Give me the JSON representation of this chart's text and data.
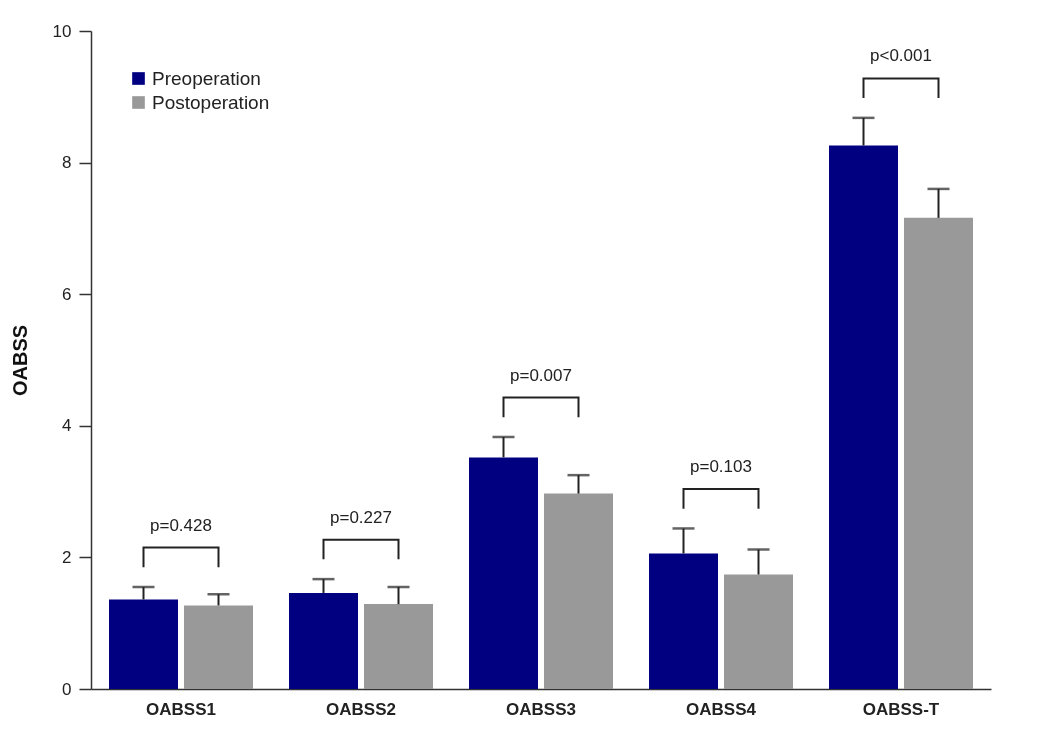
{
  "chart_data": {
    "type": "bar",
    "ylabel": "OABSS",
    "categories": [
      "OABSS1",
      "OABSS2",
      "OABSS3",
      "OABSS4",
      "OABSS-T"
    ],
    "series": [
      {
        "name": "Preoperation",
        "color": "#000080",
        "values": [
          1.36,
          1.46,
          3.52,
          2.06,
          8.26
        ],
        "errors": [
          [
            1.36,
            1.55
          ],
          [
            1.46,
            1.67
          ],
          [
            3.52,
            3.83
          ],
          [
            2.06,
            2.44
          ],
          [
            8.26,
            8.68
          ]
        ]
      },
      {
        "name": "Postoperation",
        "color": "#999999",
        "values": [
          1.27,
          1.29,
          2.97,
          1.74,
          7.16
        ],
        "errors": [
          [
            1.27,
            1.44
          ],
          [
            1.29,
            1.55
          ],
          [
            2.97,
            3.25
          ],
          [
            1.74,
            2.12
          ],
          [
            7.16,
            7.6
          ]
        ]
      }
    ],
    "ylim": [
      0,
      10
    ],
    "yticks": [
      0,
      2,
      4,
      6,
      8,
      10
    ],
    "grid": false,
    "legend": "top left",
    "annotations": [
      "p=0.428",
      "p=0.227",
      "p=0.007",
      "p=0.103",
      "p<0.001"
    ]
  }
}
